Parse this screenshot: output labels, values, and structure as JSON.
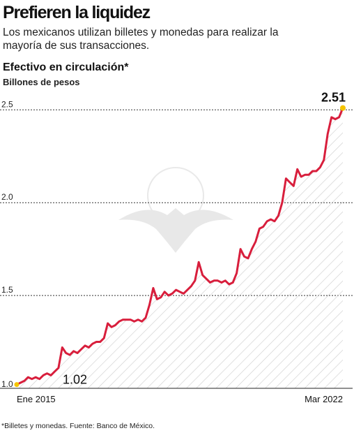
{
  "header": {
    "headline": "Prefieren la liquidez",
    "subtitle": "Los mexicanos utilizan billetes y monedas para realizar la mayoría de sus transacciones."
  },
  "footnote": "*Billetes y monedas. Fuente: Banco de México.",
  "colors": {
    "line": "#d81e3c",
    "endpoint": "#f5c400",
    "grid": "#333333",
    "hatch": "#cfcfcf"
  },
  "chart_data": {
    "type": "area",
    "title": "Efectivo en circulación*",
    "ylabel": "Billones de pesos",
    "ylim": [
      1.0,
      2.55
    ],
    "yticks": [
      "1.0",
      "1.5",
      "2.0",
      "2.5"
    ],
    "ytick_values": [
      1.0,
      1.5,
      2.0,
      2.5
    ],
    "x_start_label": "Ene 2015",
    "x_end_label": "Mar 2022",
    "start_value_label": "1.02",
    "end_value_label": "2.51",
    "grid": true,
    "series": [
      {
        "values": [
          1.02,
          1.03,
          1.04,
          1.06,
          1.05,
          1.06,
          1.05,
          1.07,
          1.08,
          1.07,
          1.09,
          1.11,
          1.22,
          1.19,
          1.18,
          1.2,
          1.19,
          1.21,
          1.23,
          1.22,
          1.24,
          1.25,
          1.25,
          1.27,
          1.35,
          1.33,
          1.34,
          1.36,
          1.37,
          1.37,
          1.37,
          1.36,
          1.37,
          1.36,
          1.38,
          1.45,
          1.54,
          1.48,
          1.49,
          1.52,
          1.5,
          1.51,
          1.53,
          1.52,
          1.51,
          1.53,
          1.55,
          1.58,
          1.68,
          1.61,
          1.59,
          1.57,
          1.58,
          1.58,
          1.57,
          1.58,
          1.56,
          1.57,
          1.62,
          1.75,
          1.71,
          1.7,
          1.75,
          1.79,
          1.86,
          1.87,
          1.9,
          1.91,
          1.9,
          1.93,
          2.0,
          2.13,
          2.11,
          2.09,
          2.18,
          2.14,
          2.15,
          2.15,
          2.17,
          2.17,
          2.19,
          2.23,
          2.37,
          2.46,
          2.45,
          2.46,
          2.51
        ]
      }
    ]
  }
}
